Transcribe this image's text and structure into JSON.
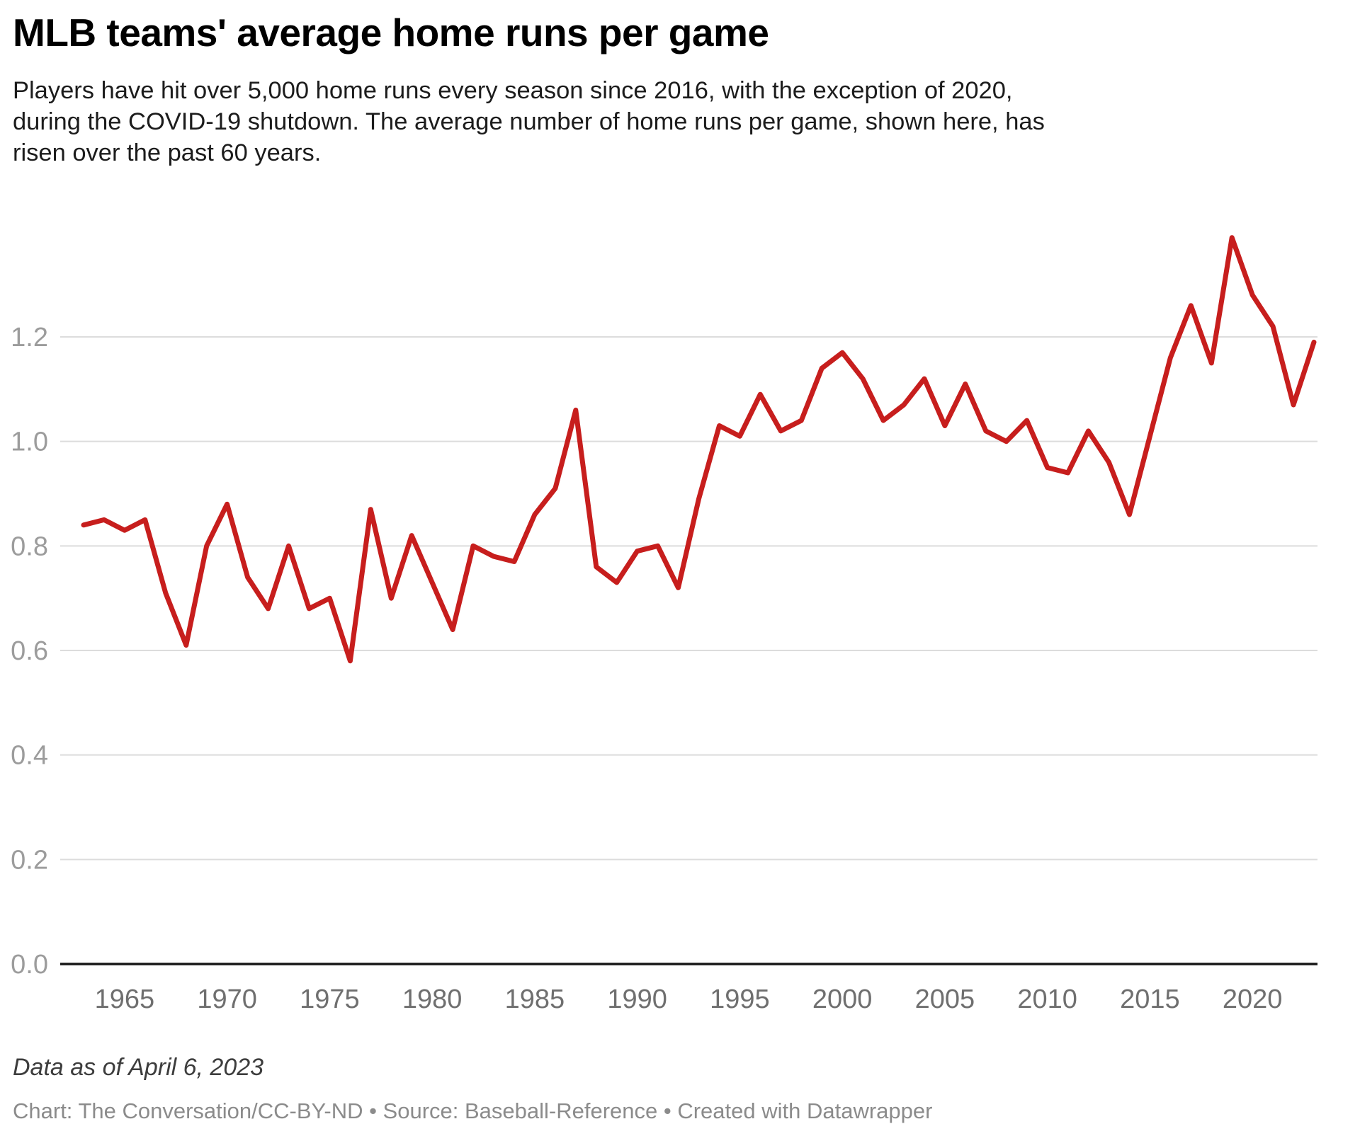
{
  "header": {
    "title": "MLB teams' average home runs per game",
    "subtitle_lines": [
      "Players have hit over 5,000 home runs every season since 2016, with the exception of 2020,",
      "during the COVID-19 shutdown. The average number of home runs per game, shown here, has",
      "risen over the past 60 years."
    ]
  },
  "footer": {
    "note": "Data as of April 6, 2023",
    "byline": "Chart: The Conversation/CC-BY-ND • Source: Baseball-Reference • Created with Datawrapper"
  },
  "chart_data": {
    "type": "line",
    "title": "MLB teams' average home runs per game",
    "xlabel": "",
    "ylabel": "",
    "series_name": "Average home runs per game",
    "line_color": "#c71e1d",
    "grid_color": "#dcdcdc",
    "axis_line_color": "#161616",
    "y_label_color": "#9c9c9c",
    "x_label_color": "#6f6f6f",
    "grid": "horizontal",
    "legend": "none",
    "xlim": [
      1963,
      2023
    ],
    "ylim": [
      0,
      1.45
    ],
    "x_ticks": [
      1965,
      1970,
      1975,
      1980,
      1985,
      1990,
      1995,
      2000,
      2005,
      2010,
      2015,
      2020
    ],
    "y_ticks": [
      0.0,
      0.2,
      0.4,
      0.6,
      0.8,
      1.0,
      1.2
    ],
    "x": [
      1963,
      1964,
      1965,
      1966,
      1967,
      1968,
      1969,
      1970,
      1971,
      1972,
      1973,
      1974,
      1975,
      1976,
      1977,
      1978,
      1979,
      1980,
      1981,
      1982,
      1983,
      1984,
      1985,
      1986,
      1987,
      1988,
      1989,
      1990,
      1991,
      1992,
      1993,
      1994,
      1995,
      1996,
      1997,
      1998,
      1999,
      2000,
      2001,
      2002,
      2003,
      2004,
      2005,
      2006,
      2007,
      2008,
      2009,
      2010,
      2011,
      2012,
      2013,
      2014,
      2015,
      2016,
      2017,
      2018,
      2019,
      2020,
      2021,
      2022,
      2023
    ],
    "values": [
      0.84,
      0.85,
      0.83,
      0.85,
      0.71,
      0.61,
      0.8,
      0.88,
      0.74,
      0.68,
      0.8,
      0.68,
      0.7,
      0.58,
      0.87,
      0.7,
      0.82,
      0.73,
      0.64,
      0.8,
      0.78,
      0.77,
      0.86,
      0.91,
      1.06,
      0.76,
      0.73,
      0.79,
      0.8,
      0.72,
      0.89,
      1.03,
      1.01,
      1.09,
      1.02,
      1.04,
      1.14,
      1.17,
      1.12,
      1.04,
      1.07,
      1.12,
      1.03,
      1.11,
      1.02,
      1.0,
      1.04,
      0.95,
      0.94,
      1.02,
      0.96,
      0.86,
      1.01,
      1.16,
      1.26,
      1.15,
      1.39,
      1.28,
      1.22,
      1.07,
      1.19
    ]
  }
}
